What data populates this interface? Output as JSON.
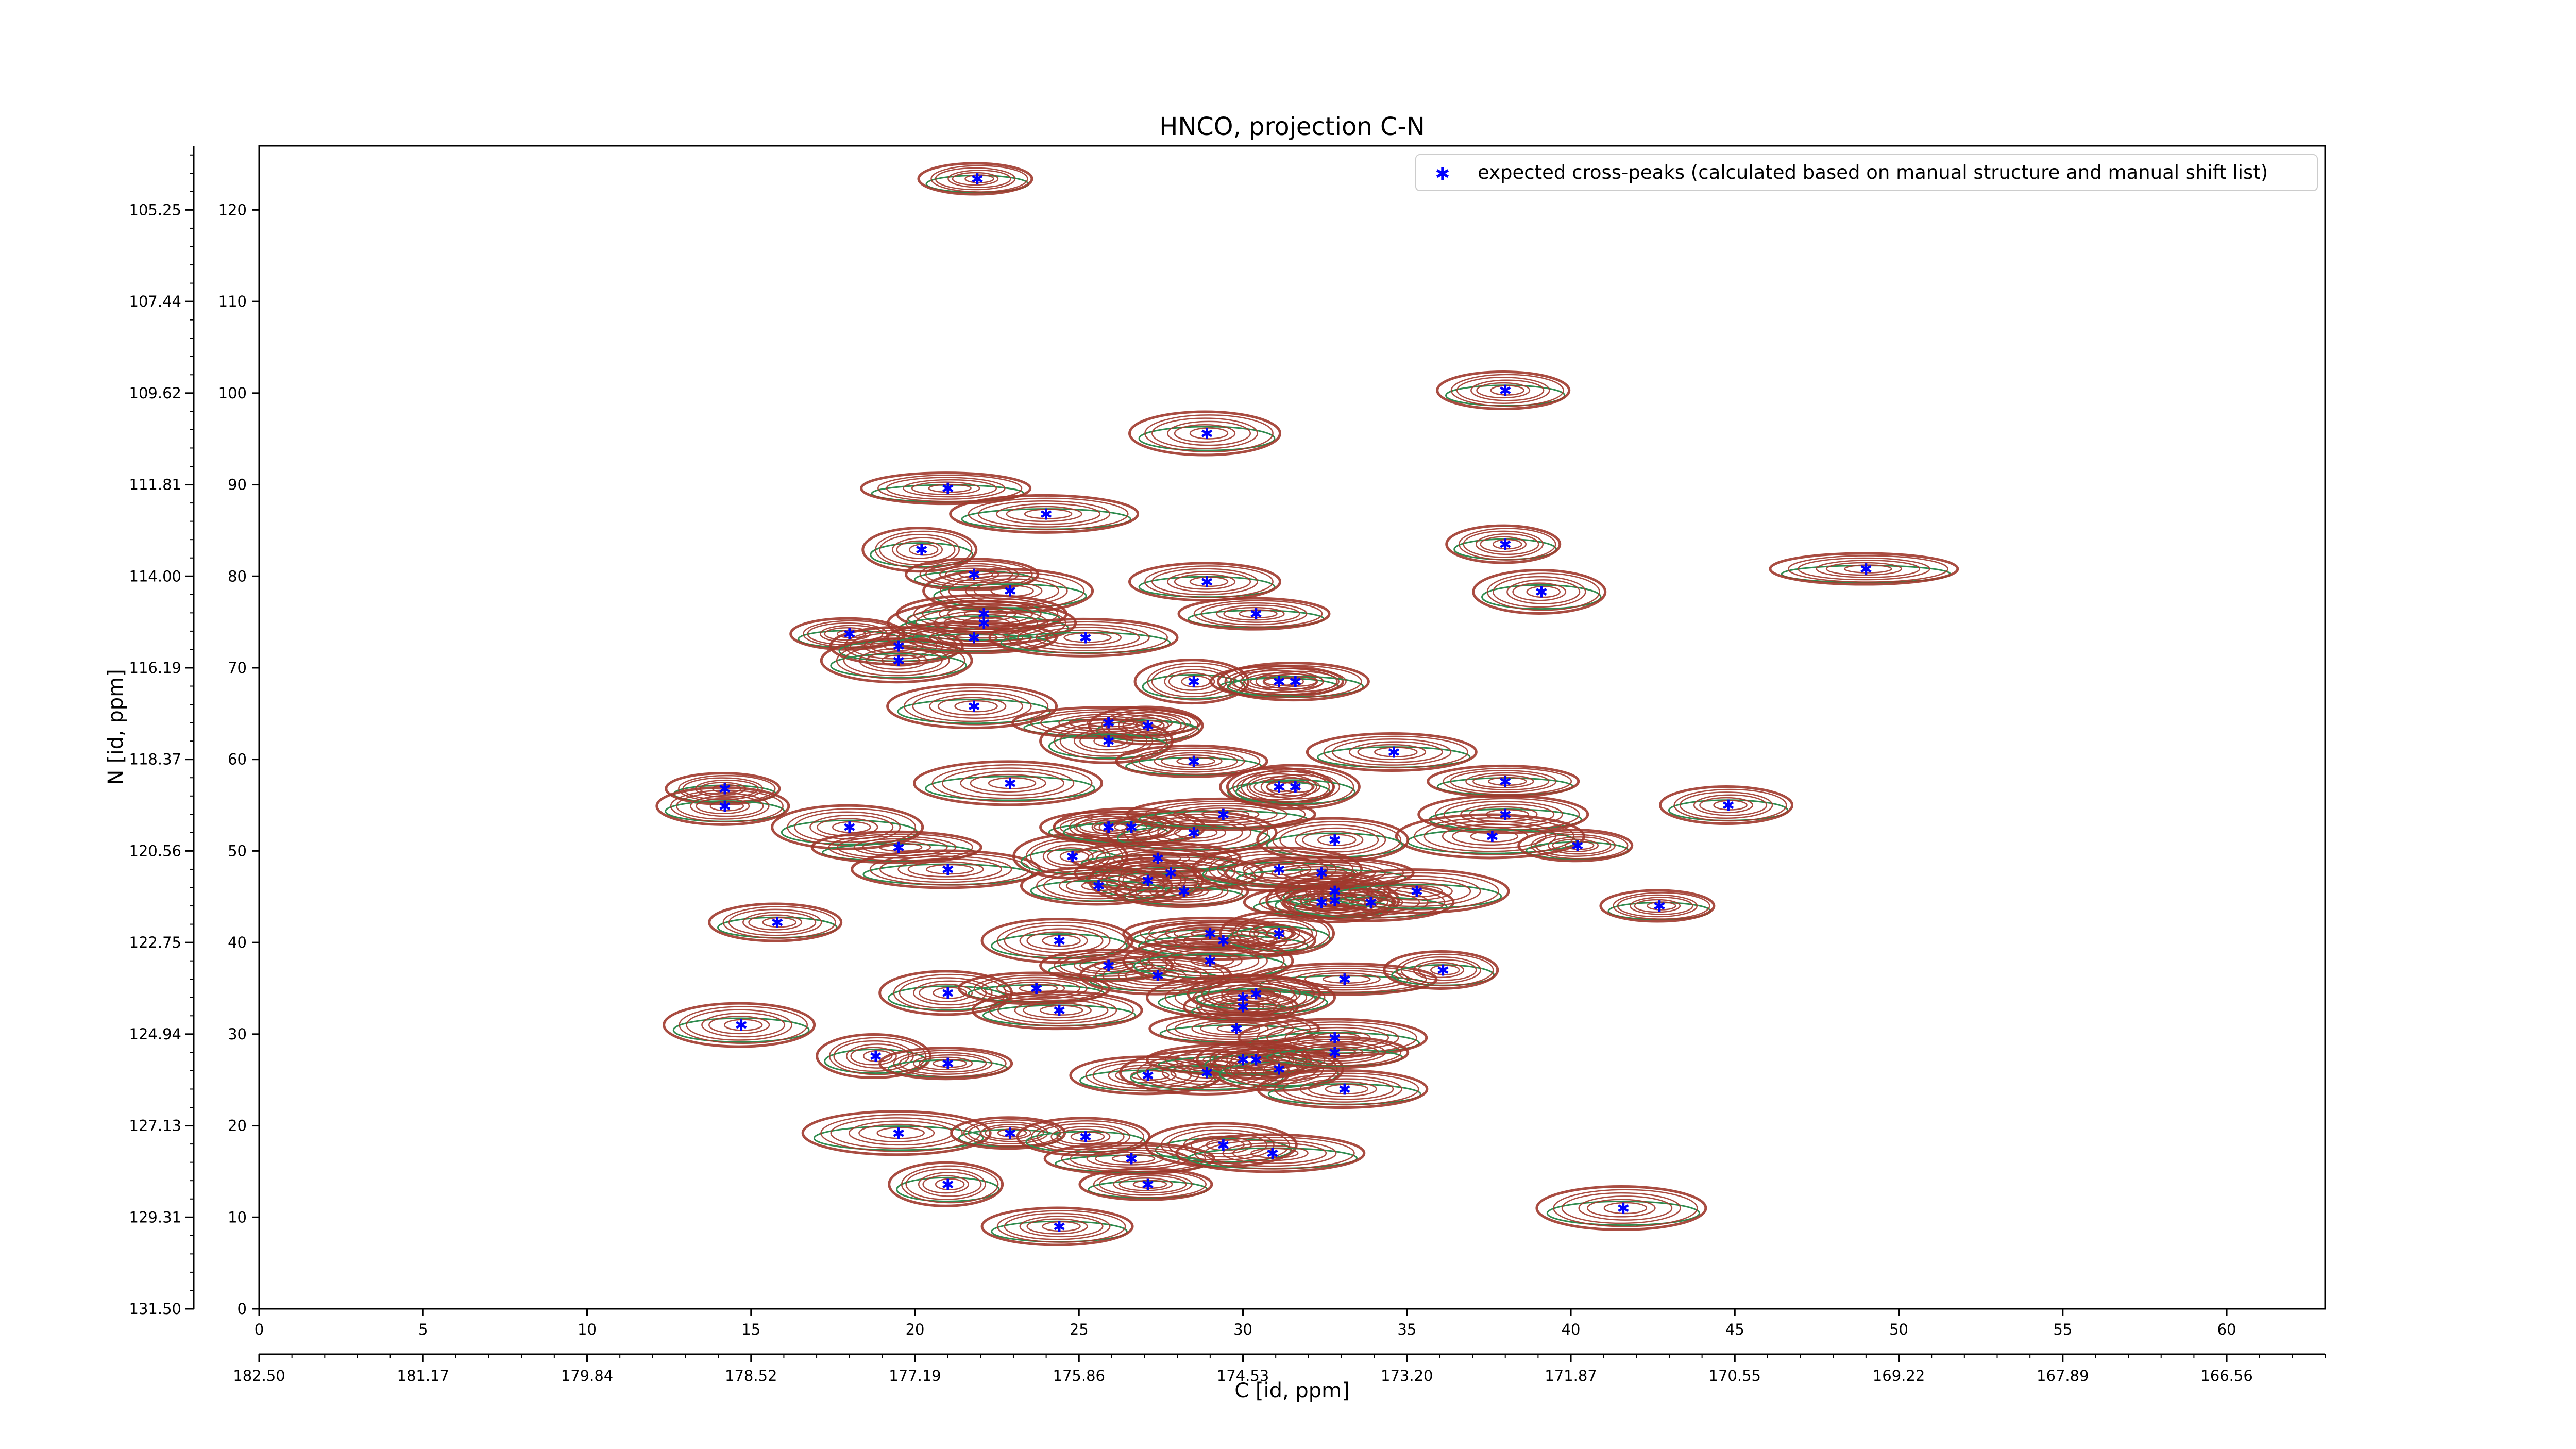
{
  "chart_data": {
    "type": "scatter",
    "title": "HNCO, projection C-N",
    "xlabel": "C [id, ppm]",
    "ylabel": "N [id, ppm]",
    "xlim": [
      0,
      63
    ],
    "ylim": [
      0,
      127
    ],
    "x_ticks": [
      0,
      5,
      10,
      15,
      20,
      25,
      30,
      35,
      40,
      45,
      50,
      55,
      60
    ],
    "y_ticks": [
      0,
      10,
      20,
      30,
      40,
      50,
      60,
      70,
      80,
      90,
      100,
      110,
      120
    ],
    "secondary_x_ticks": [
      "182.50",
      "181.17",
      "179.84",
      "178.52",
      "177.19",
      "175.86",
      "174.53",
      "173.20",
      "171.87",
      "170.55",
      "169.22",
      "167.89",
      "166.56"
    ],
    "secondary_y_ticks": [
      "131.50",
      "129.31",
      "127.13",
      "124.94",
      "122.75",
      "120.56",
      "118.37",
      "116.19",
      "114.00",
      "111.81",
      "109.62",
      "107.44",
      "105.25"
    ],
    "grid": false,
    "legend_position": "top-right",
    "colors": {
      "marker": "#0000ff",
      "contour_positive": "#a0392c",
      "contour_negative": "#2e8b4e"
    },
    "series": [
      {
        "name": "expected cross-peaks (calculated based on manual structure and manual shift list)",
        "points": [
          [
            21.9,
            123.4
          ],
          [
            38.0,
            100.3
          ],
          [
            28.9,
            95.6
          ],
          [
            21.0,
            89.6
          ],
          [
            24.0,
            86.8
          ],
          [
            20.2,
            82.9
          ],
          [
            21.8,
            80.2
          ],
          [
            28.9,
            79.4
          ],
          [
            22.9,
            78.4
          ],
          [
            49.0,
            80.8
          ],
          [
            38.0,
            83.5
          ],
          [
            39.1,
            78.3
          ],
          [
            30.4,
            75.9
          ],
          [
            22.1,
            75.9
          ],
          [
            22.1,
            74.9
          ],
          [
            18.0,
            73.7
          ],
          [
            19.5,
            72.4
          ],
          [
            19.5,
            70.8
          ],
          [
            21.8,
            73.3
          ],
          [
            25.2,
            73.3
          ],
          [
            28.5,
            68.5
          ],
          [
            31.1,
            68.5
          ],
          [
            31.6,
            68.5
          ],
          [
            21.8,
            65.8
          ],
          [
            25.9,
            64.0
          ],
          [
            27.1,
            63.7
          ],
          [
            25.9,
            62.0
          ],
          [
            28.5,
            59.8
          ],
          [
            34.6,
            60.8
          ],
          [
            22.9,
            57.4
          ],
          [
            14.2,
            56.8
          ],
          [
            14.2,
            54.9
          ],
          [
            18.0,
            52.6
          ],
          [
            19.5,
            50.4
          ],
          [
            21.0,
            48.0
          ],
          [
            24.8,
            49.4
          ],
          [
            25.9,
            52.6
          ],
          [
            26.6,
            52.6
          ],
          [
            28.5,
            52.0
          ],
          [
            29.4,
            54.0
          ],
          [
            31.1,
            57.0
          ],
          [
            31.6,
            57.0
          ],
          [
            38.0,
            57.6
          ],
          [
            38.0,
            54.0
          ],
          [
            37.6,
            51.6
          ],
          [
            40.2,
            50.6
          ],
          [
            44.8,
            55.0
          ],
          [
            32.8,
            51.2
          ],
          [
            27.4,
            49.2
          ],
          [
            27.8,
            47.6
          ],
          [
            27.1,
            46.8
          ],
          [
            28.2,
            45.6
          ],
          [
            25.6,
            46.2
          ],
          [
            31.1,
            48.0
          ],
          [
            32.4,
            47.6
          ],
          [
            32.8,
            45.6
          ],
          [
            32.8,
            44.6
          ],
          [
            32.4,
            44.4
          ],
          [
            33.9,
            44.4
          ],
          [
            35.3,
            45.6
          ],
          [
            42.7,
            44.0
          ],
          [
            15.8,
            42.2
          ],
          [
            24.4,
            40.2
          ],
          [
            29.0,
            41.0
          ],
          [
            29.4,
            40.2
          ],
          [
            31.1,
            41.0
          ],
          [
            25.9,
            37.5
          ],
          [
            27.4,
            36.4
          ],
          [
            29.0,
            38.0
          ],
          [
            33.1,
            36.0
          ],
          [
            36.1,
            37.0
          ],
          [
            21.0,
            34.5
          ],
          [
            23.7,
            35.0
          ],
          [
            24.4,
            32.6
          ],
          [
            30.0,
            34.0
          ],
          [
            30.0,
            33.0
          ],
          [
            30.4,
            34.4
          ],
          [
            14.7,
            31.0
          ],
          [
            29.8,
            30.6
          ],
          [
            32.8,
            29.6
          ],
          [
            18.8,
            27.6
          ],
          [
            21.0,
            26.8
          ],
          [
            27.1,
            25.5
          ],
          [
            28.9,
            25.8
          ],
          [
            30.0,
            27.2
          ],
          [
            30.4,
            27.2
          ],
          [
            31.1,
            26.2
          ],
          [
            32.8,
            28.0
          ],
          [
            33.1,
            24.0
          ],
          [
            19.5,
            19.2
          ],
          [
            22.9,
            19.2
          ],
          [
            25.2,
            18.8
          ],
          [
            29.4,
            17.9
          ],
          [
            26.6,
            16.4
          ],
          [
            30.9,
            17.0
          ],
          [
            21.0,
            13.6
          ],
          [
            27.1,
            13.6
          ],
          [
            24.4,
            9.0
          ],
          [
            41.6,
            11.0
          ]
        ]
      }
    ]
  }
}
